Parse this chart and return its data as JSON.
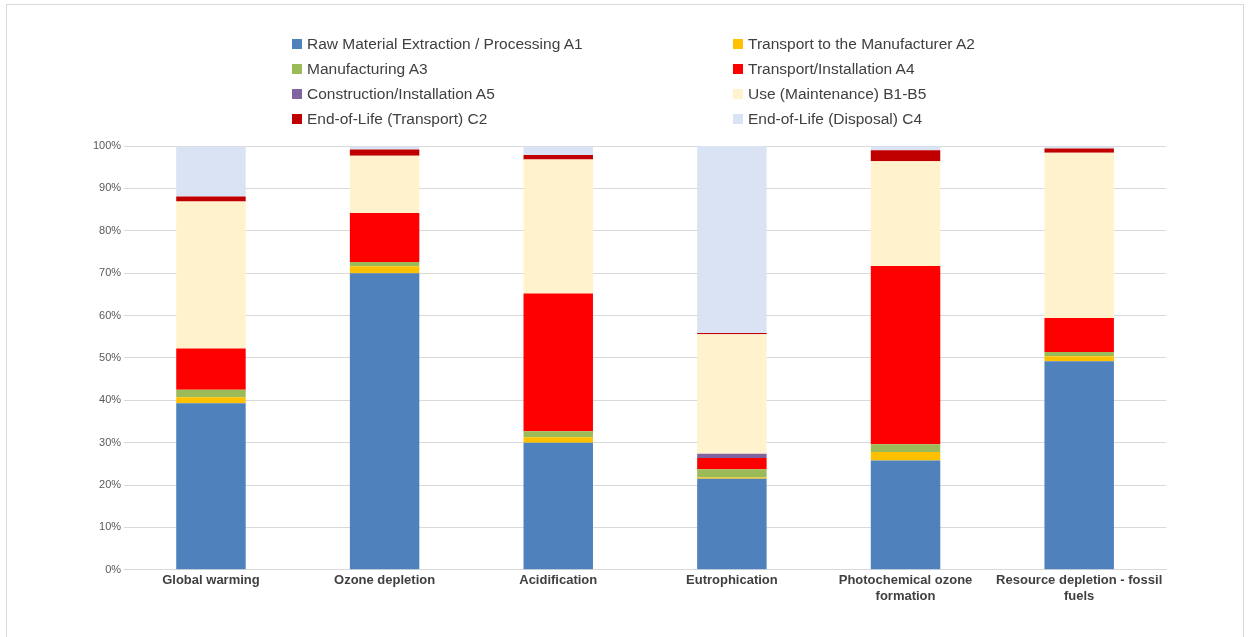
{
  "chart_data": {
    "type": "bar",
    "stacked": true,
    "legend": "top",
    "grid": "y",
    "categories": [
      "Global warming",
      "Ozone depletion",
      "Acidification",
      "Eutrophication",
      "Photochemical ozone formation",
      "Resource depletion - fossil fuels"
    ],
    "ylim": [
      0,
      100
    ],
    "yticks": [
      {
        "value": 0,
        "label": "0%"
      },
      {
        "value": 10,
        "label": "10%"
      },
      {
        "value": 20,
        "label": "20%"
      },
      {
        "value": 30,
        "label": "30%"
      },
      {
        "value": 40,
        "label": "40%"
      },
      {
        "value": 50,
        "label": "50%"
      },
      {
        "value": 60,
        "label": "60%"
      },
      {
        "value": 70,
        "label": "70%"
      },
      {
        "value": 80,
        "label": "80%"
      },
      {
        "value": 90,
        "label": "90%"
      },
      {
        "value": 100,
        "label": "100%"
      }
    ],
    "series": [
      {
        "name": "Raw Material Extraction / Processing A1",
        "color": "#4f81bd",
        "values": [
          39.3,
          70,
          30,
          21.5,
          25.8,
          49.2
        ]
      },
      {
        "name": "Transport to the Manufacturer A2",
        "color": "#ffc000",
        "values": [
          1.4,
          1.6,
          1.3,
          0.3,
          2.0,
          1.2
        ]
      },
      {
        "name": "Manufacturing A3",
        "color": "#9bbb59",
        "values": [
          1.8,
          1.0,
          1.4,
          1.9,
          1.8,
          1.0
        ]
      },
      {
        "name": "Transport/Installation A4",
        "color": "#ff0000",
        "values": [
          9.7,
          11.6,
          32.5,
          2.7,
          42.1,
          8.0
        ]
      },
      {
        "name": "Construction/Installation A5",
        "color": "#8064a2",
        "values": [
          null,
          null,
          null,
          1.0,
          null,
          null
        ]
      },
      {
        "name": "Use (Maintenance) B1-B5",
        "color": "#fff2cc",
        "values": [
          34.7,
          13.5,
          31.6,
          28.2,
          24.7,
          39.0
        ]
      },
      {
        "name": "End-of-Life (Transport) C2",
        "color": "#c00000",
        "values": [
          1.2,
          1.5,
          1.1,
          0.3,
          2.6,
          1.0
        ]
      },
      {
        "name": "End-of-Life (Disposal) C4",
        "color": "#dae3f3",
        "values": [
          11.8,
          0.7,
          2.0,
          44.1,
          0.9,
          0.5
        ]
      }
    ]
  }
}
